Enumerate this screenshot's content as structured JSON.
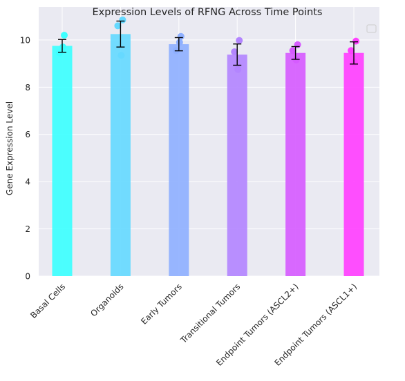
{
  "chart_data": {
    "type": "bar",
    "title": "Expression Levels of RFNG Across Time Points",
    "xlabel": "",
    "ylabel": "Gene Expression Level",
    "categories": [
      "Basal Cells",
      "Organoids",
      "Early Tumors",
      "Transitional Tumors",
      "Endpoint Tumors (ASCL2+)",
      "Endpoint Tumors (ASCL1+)"
    ],
    "values": [
      9.75,
      10.25,
      9.82,
      9.38,
      9.45,
      9.45
    ],
    "errors": [
      0.27,
      0.55,
      0.28,
      0.45,
      0.27,
      0.47
    ],
    "points": [
      [
        10.2,
        9.45,
        9.7
      ],
      [
        10.85,
        10.6,
        9.35
      ],
      [
        10.15,
        9.55,
        9.9
      ],
      [
        9.98,
        9.5,
        8.75
      ],
      [
        9.8,
        9.55,
        9.15
      ],
      [
        9.95,
        9.55,
        9.05
      ]
    ],
    "colors": [
      "#3dffff",
      "#66d9ff",
      "#8fb0ff",
      "#b385ff",
      "#d65cff",
      "#ff40ff"
    ],
    "ylim": [
      0,
      11.4
    ],
    "yticks": [
      0,
      2,
      4,
      6,
      8,
      10
    ],
    "grid": true,
    "legend": "top-right",
    "background": "#eaeaf2"
  }
}
